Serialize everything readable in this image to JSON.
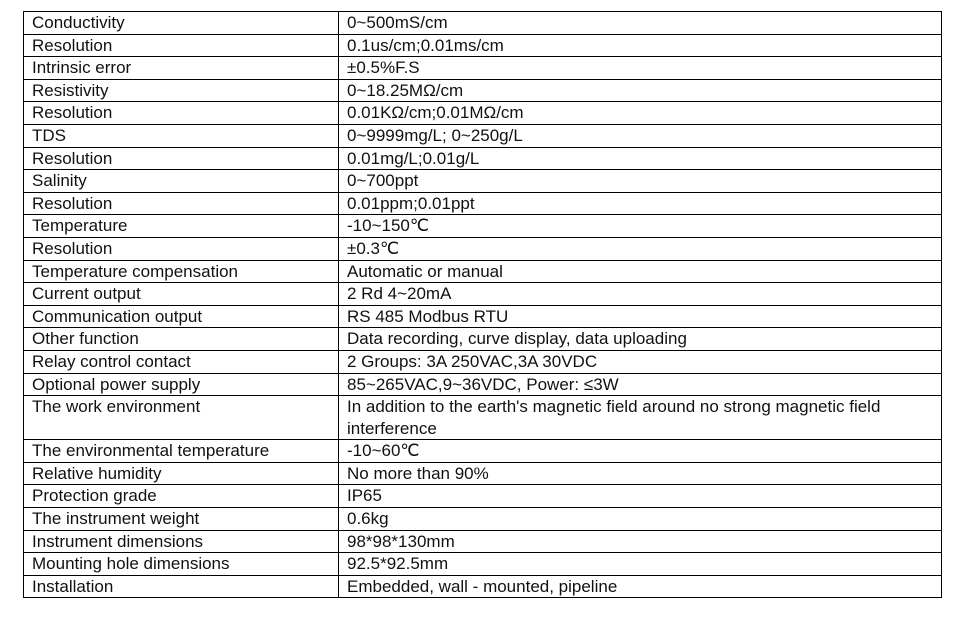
{
  "table": {
    "rows": [
      [
        "Conductivity",
        "0~500mS/cm"
      ],
      [
        "Resolution",
        "0.1us/cm;0.01ms/cm"
      ],
      [
        "Intrinsic error",
        "±0.5%F.S"
      ],
      [
        "Resistivity",
        "0~18.25MΩ/cm"
      ],
      [
        "Resolution",
        "0.01KΩ/cm;0.01MΩ/cm"
      ],
      [
        "TDS",
        "0~9999mg/L; 0~250g/L"
      ],
      [
        "Resolution",
        "0.01mg/L;0.01g/L"
      ],
      [
        "Salinity",
        "0~700ppt"
      ],
      [
        "Resolution",
        "0.01ppm;0.01ppt"
      ],
      [
        "Temperature",
        "-10~150℃"
      ],
      [
        "Resolution",
        "±0.3℃"
      ],
      [
        "Temperature compensation",
        "Automatic or manual"
      ],
      [
        "Current output",
        "2 Rd 4~20mA"
      ],
      [
        "Communication output",
        "RS 485 Modbus RTU"
      ],
      [
        "Other function",
        "Data recording, curve display, data uploading"
      ],
      [
        "Relay control contact",
        "2 Groups: 3A 250VAC,3A 30VDC"
      ],
      [
        "Optional power supply",
        "85~265VAC,9~36VDC, Power: ≤3W"
      ],
      [
        "The work environment",
        "In addition to the earth's magnetic field around no strong magnetic field interference"
      ],
      [
        "The environmental temperature",
        "-10~60℃"
      ],
      [
        "Relative humidity",
        "No more than 90%"
      ],
      [
        "Protection grade",
        "IP65"
      ],
      [
        "The instrument weight",
        "0.6kg"
      ],
      [
        "Instrument dimensions",
        "98*98*130mm"
      ],
      [
        "Mounting hole dimensions",
        "92.5*92.5mm"
      ],
      [
        "Installation",
        "Embedded, wall - mounted, pipeline"
      ]
    ]
  }
}
